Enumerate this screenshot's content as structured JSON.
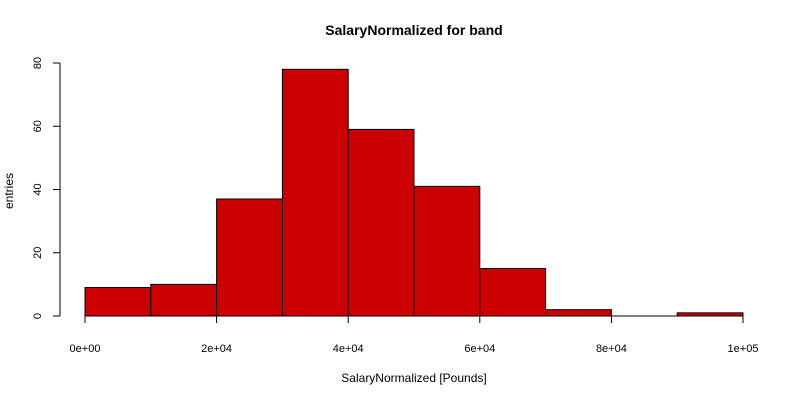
{
  "chart_data": {
    "type": "bar",
    "title": "SalaryNormalized for band",
    "xlabel": "SalaryNormalized [Pounds]",
    "ylabel": "entries",
    "bin_edges": [
      0,
      10000,
      20000,
      30000,
      40000,
      50000,
      60000,
      70000,
      80000,
      90000,
      100000
    ],
    "values": [
      9,
      10,
      37,
      78,
      59,
      41,
      15,
      2,
      0,
      1
    ],
    "xlim": [
      0,
      100000
    ],
    "ylim": [
      0,
      80
    ],
    "x_ticks": [
      0,
      20000,
      40000,
      60000,
      80000,
      100000
    ],
    "x_tick_labels": [
      "0e+00",
      "2e+04",
      "4e+04",
      "6e+04",
      "8e+04",
      "1e+05"
    ],
    "y_ticks": [
      0,
      20,
      40,
      60,
      80
    ],
    "y_tick_labels": [
      "0",
      "20",
      "40",
      "60",
      "80"
    ],
    "bar_color": "#cc0000",
    "grid": false,
    "legend": "none"
  }
}
